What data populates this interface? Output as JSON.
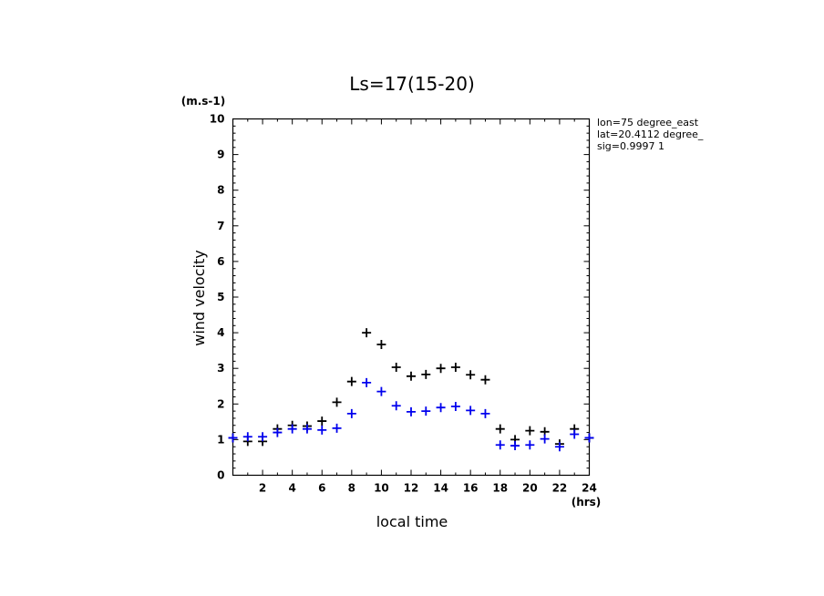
{
  "chart_data": {
    "type": "scatter",
    "title": "Ls=17(15-20)",
    "xlabel": "local time",
    "ylabel": "wind velocity",
    "x_unit": "(hrs)",
    "y_unit": "(m.s-1)",
    "xlim": [
      0,
      24
    ],
    "ylim": [
      0,
      10
    ],
    "x_ticks": [
      2,
      4,
      6,
      8,
      10,
      12,
      14,
      16,
      18,
      20,
      22,
      24
    ],
    "y_ticks": [
      0,
      1,
      2,
      3,
      4,
      5,
      6,
      7,
      8,
      9,
      10
    ],
    "info_lines": [
      "lon=75 degree_east",
      "lat=20.4112 degree_",
      "sig=0.9997 1"
    ],
    "grid": false,
    "x": [
      0,
      1,
      2,
      3,
      4,
      5,
      6,
      7,
      8,
      9,
      10,
      11,
      12,
      13,
      14,
      15,
      16,
      17,
      18,
      19,
      20,
      21,
      22,
      23,
      24
    ],
    "series": [
      {
        "color": "#000000",
        "values": [
          1.05,
          0.95,
          0.95,
          1.3,
          1.4,
          1.38,
          1.52,
          2.05,
          2.63,
          4.0,
          3.67,
          3.03,
          2.78,
          2.83,
          3.0,
          3.03,
          2.82,
          2.68,
          1.3,
          1.0,
          1.25,
          1.22,
          0.88,
          1.3,
          1.05
        ]
      },
      {
        "color": "#0000ee",
        "values": [
          1.05,
          1.08,
          1.08,
          1.2,
          1.3,
          1.3,
          1.27,
          1.32,
          1.73,
          2.6,
          2.35,
          1.95,
          1.78,
          1.8,
          1.9,
          1.93,
          1.82,
          1.73,
          0.85,
          0.83,
          0.85,
          1.02,
          0.8,
          1.15,
          1.05
        ]
      }
    ]
  }
}
